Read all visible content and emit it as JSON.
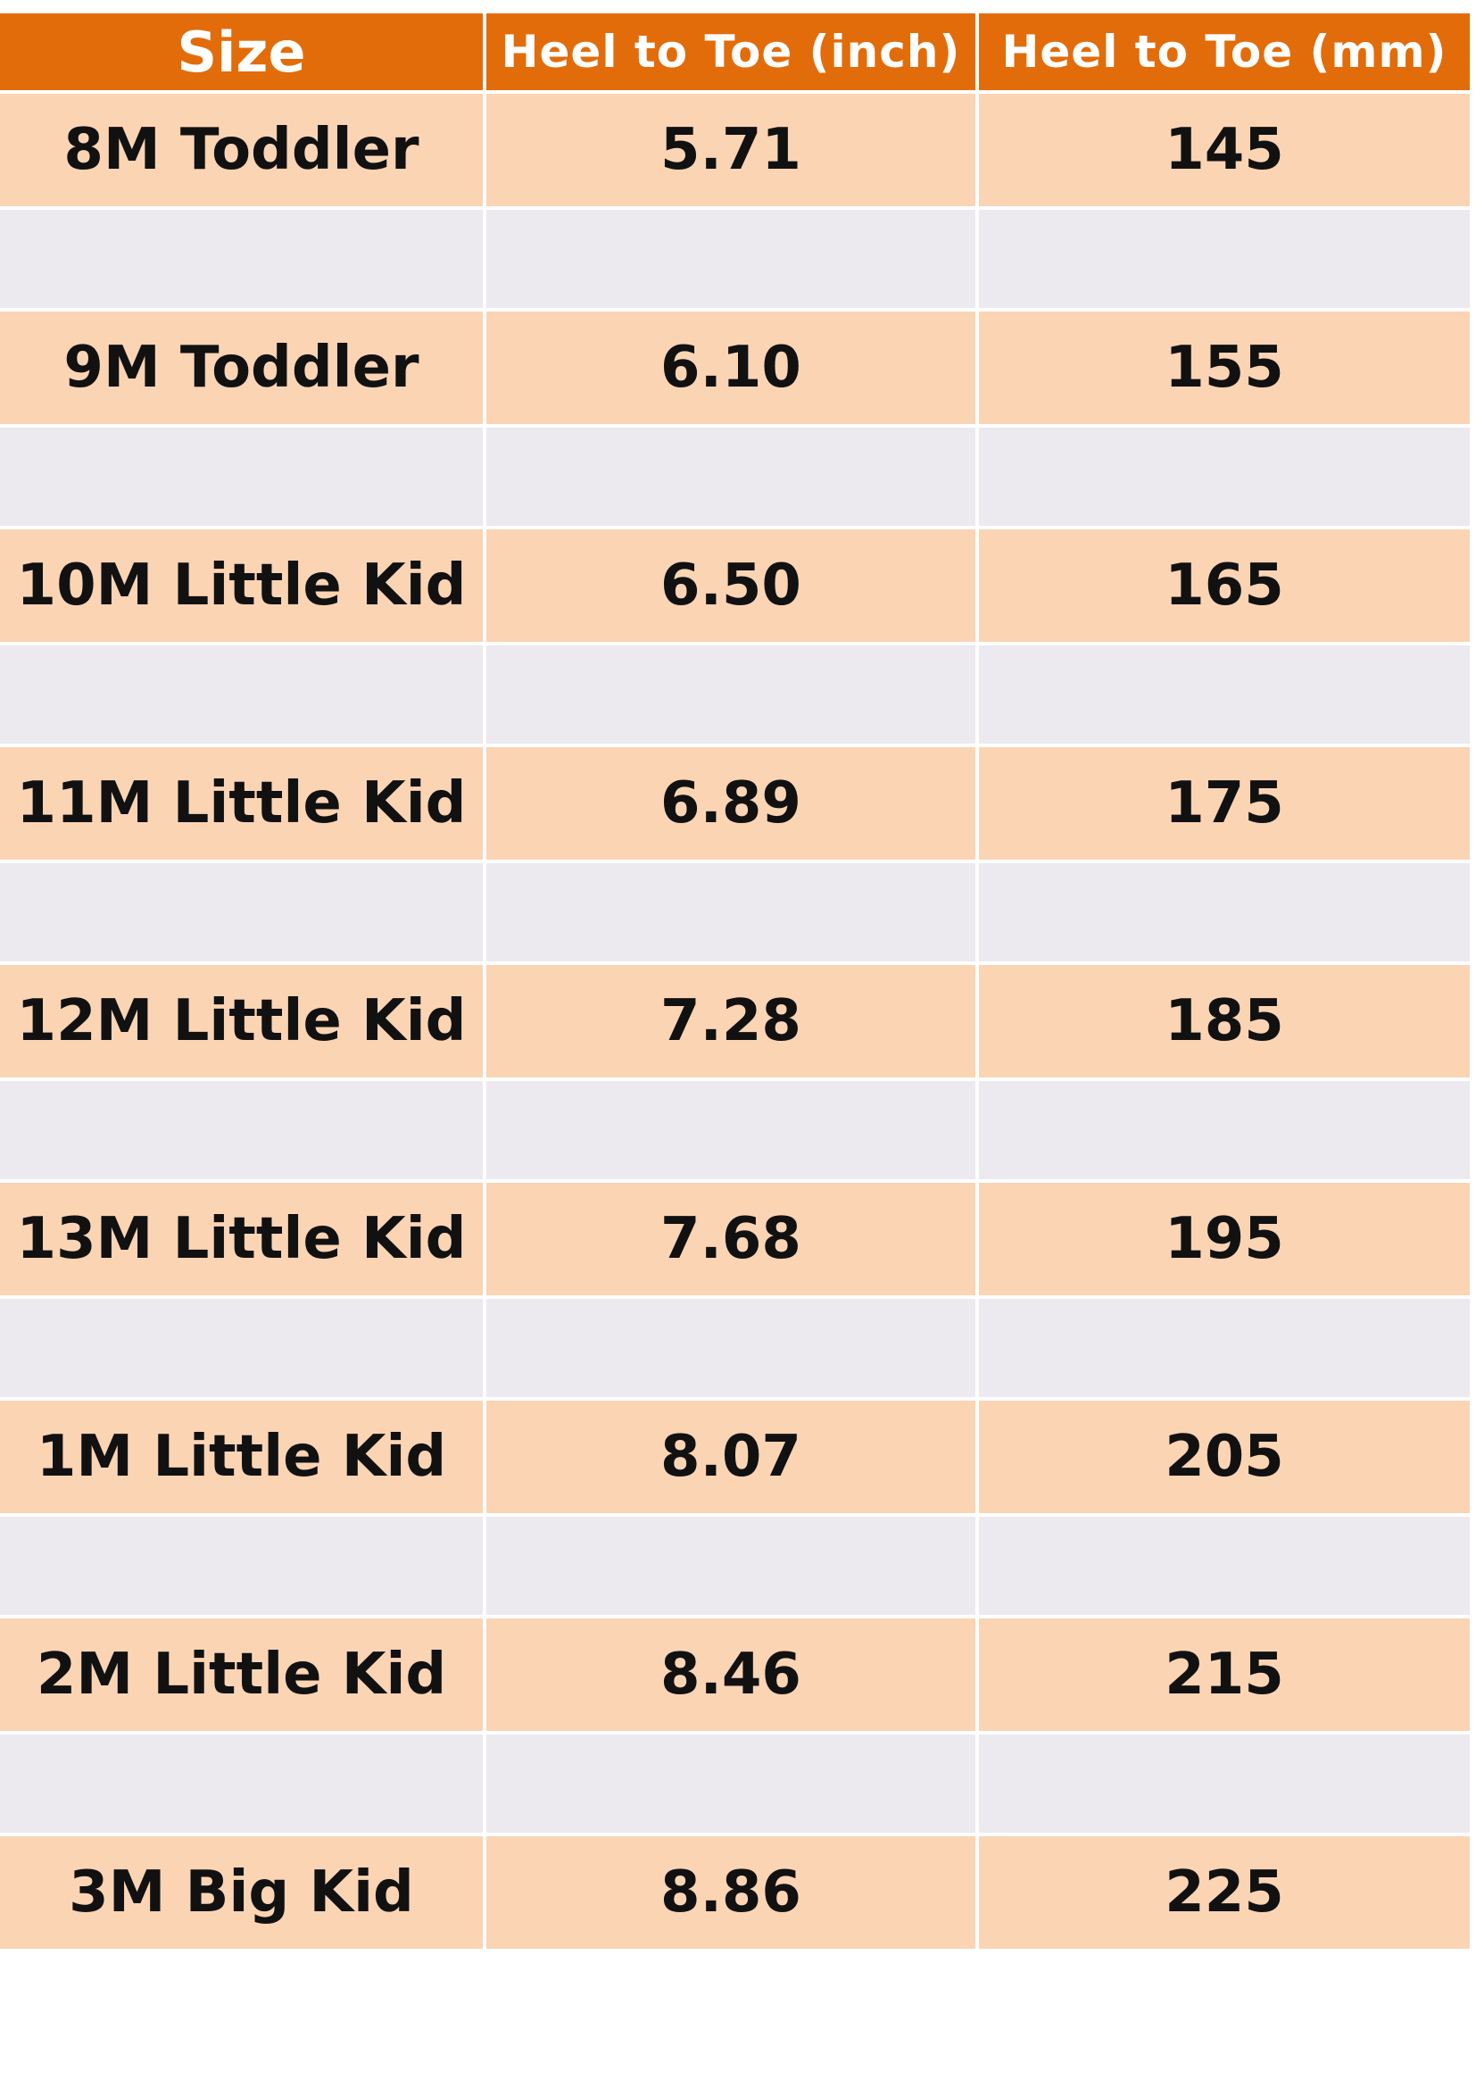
{
  "table": {
    "headers": [
      "Size",
      "Heel to Toe (inch)",
      "Heel to Toe (mm)"
    ],
    "rows": [
      {
        "size": "8M Toddler",
        "inch": "5.71",
        "mm": "145"
      },
      {
        "size": "9M Toddler",
        "inch": "6.10",
        "mm": "155"
      },
      {
        "size": "10M Little Kid",
        "inch": "6.50",
        "mm": "165"
      },
      {
        "size": "11M Little Kid",
        "inch": "6.89",
        "mm": "175"
      },
      {
        "size": "12M Little Kid",
        "inch": "7.28",
        "mm": "185"
      },
      {
        "size": "13M Little Kid",
        "inch": "7.68",
        "mm": "195"
      },
      {
        "size": "1M Little Kid",
        "inch": "8.07",
        "mm": "205"
      },
      {
        "size": "2M Little Kid",
        "inch": "8.46",
        "mm": "215"
      },
      {
        "size": "3M Big Kid",
        "inch": "8.86",
        "mm": "225"
      }
    ]
  },
  "colors": {
    "header_bg": "#e36c0a",
    "header_text": "#ffffff",
    "data_row_bg": "#fbd4b4",
    "spacer_row_bg": "#ece9ef",
    "cell_text": "#111111"
  }
}
